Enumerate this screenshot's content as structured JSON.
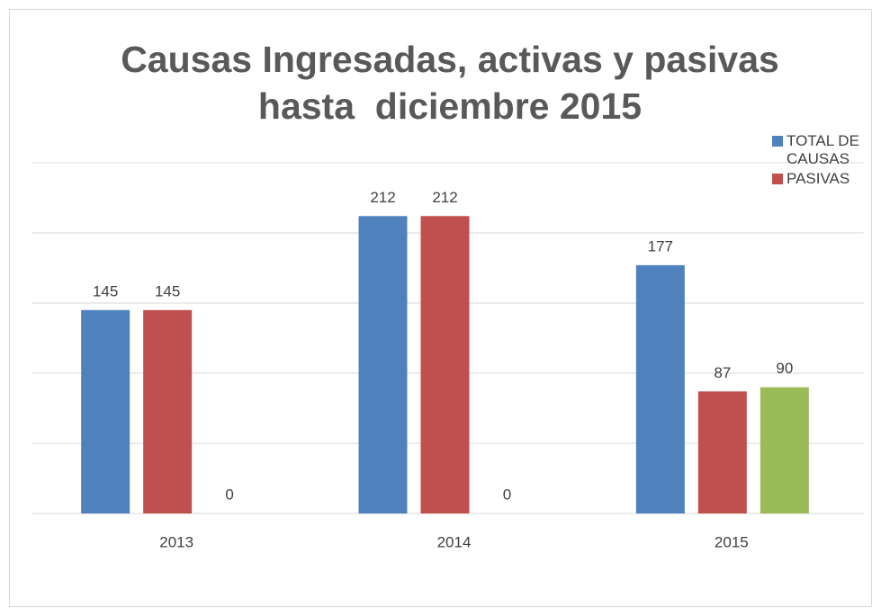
{
  "chart_data": {
    "type": "bar",
    "title": "Causas Ingresadas, activas y pasivas hasta  diciembre 2015",
    "categories": [
      "2013",
      "2014",
      "2015"
    ],
    "series": [
      {
        "name": "TOTAL DE CAUSAS",
        "color": "#4f81bd",
        "values": [
          145,
          212,
          177
        ]
      },
      {
        "name": "PASIVAS",
        "color": "#c0504d",
        "values": [
          145,
          212,
          87
        ]
      },
      {
        "color": "#9bbb59",
        "values": [
          0,
          0,
          90
        ]
      }
    ],
    "ylim": [
      0,
      250
    ],
    "yticks": [
      0,
      50,
      100,
      150,
      200,
      250
    ],
    "grid": true,
    "legend": "top-right"
  }
}
